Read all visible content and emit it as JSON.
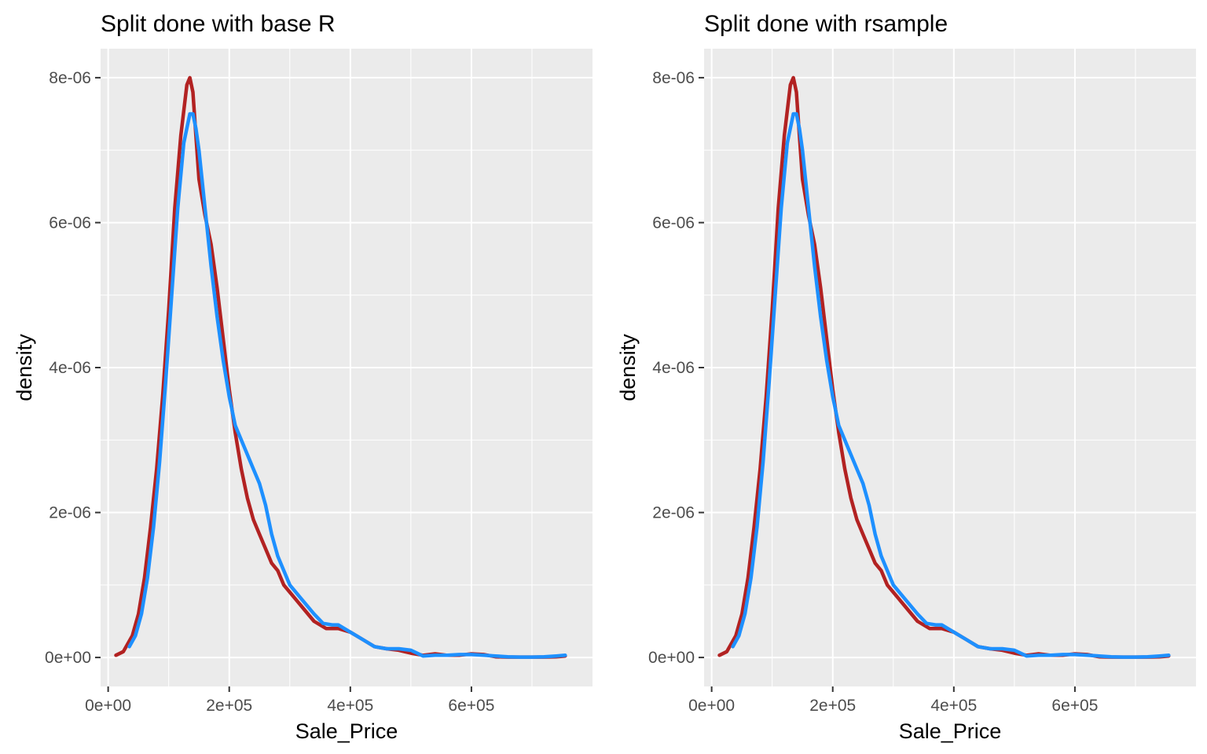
{
  "chart_data": [
    {
      "type": "line",
      "title": "Split done with base R",
      "xlabel": "Sale_Price",
      "ylabel": "density",
      "xlim": [
        -12500,
        800000
      ],
      "ylim": [
        -4e-07,
        8.4e-06
      ],
      "x_ticks": [
        0,
        200000,
        400000,
        600000
      ],
      "x_tick_labels": [
        "0e+00",
        "2e+05",
        "4e+05",
        "6e+05"
      ],
      "y_ticks": [
        0,
        2e-06,
        4e-06,
        6e-06,
        8e-06
      ],
      "y_tick_labels": [
        "0e+00",
        "2e-06",
        "4e-06",
        "6e-06",
        "8e-06"
      ],
      "grid": true,
      "legend": "none",
      "series": [
        {
          "color": "#B22222",
          "x": [
            12789,
            25000,
            40000,
            50000,
            60000,
            70000,
            80000,
            90000,
            100000,
            110000,
            120000,
            130000,
            135000,
            140000,
            145000,
            150000,
            160000,
            170000,
            180000,
            190000,
            200000,
            210000,
            220000,
            230000,
            240000,
            250000,
            260000,
            270000,
            280000,
            290000,
            300000,
            320000,
            340000,
            360000,
            380000,
            400000,
            420000,
            440000,
            460000,
            480000,
            500000,
            520000,
            540000,
            560000,
            580000,
            600000,
            620000,
            640000,
            660000,
            680000,
            700000,
            720000,
            740000,
            755000
          ],
          "y": [
            3e-08,
            8e-08,
            3e-07,
            6e-07,
            1.1e-06,
            1.8e-06,
            2.6e-06,
            3.6e-06,
            4.8e-06,
            6.2e-06,
            7.2e-06,
            7.9e-06,
            8e-06,
            7.8e-06,
            7.2e-06,
            6.6e-06,
            6.1e-06,
            5.7e-06,
            5.1e-06,
            4.4e-06,
            3.7e-06,
            3.1e-06,
            2.6e-06,
            2.2e-06,
            1.9e-06,
            1.7e-06,
            1.5e-06,
            1.3e-06,
            1.2e-06,
            1e-06,
            9e-07,
            7e-07,
            5e-07,
            4e-07,
            4e-07,
            3.5e-07,
            2.5e-07,
            1.5e-07,
            1.2e-07,
            1e-07,
            6e-08,
            3e-08,
            5e-08,
            3e-08,
            3e-08,
            5e-08,
            4e-08,
            1e-08,
            5e-09,
            5e-09,
            5e-09,
            5e-09,
            1e-08,
            2e-08
          ]
        },
        {
          "color": "#1E90FF",
          "x": [
            35000,
            45000,
            55000,
            65000,
            75000,
            85000,
            95000,
            105000,
            115000,
            125000,
            135000,
            140000,
            145000,
            150000,
            160000,
            170000,
            180000,
            190000,
            200000,
            210000,
            220000,
            230000,
            240000,
            250000,
            260000,
            270000,
            280000,
            290000,
            300000,
            320000,
            340000,
            355000,
            370000,
            380000,
            400000,
            420000,
            440000,
            460000,
            480000,
            500000,
            520000,
            540000,
            560000,
            580000,
            600000,
            620000,
            640000,
            660000,
            680000,
            700000,
            720000,
            740000,
            755000
          ],
          "y": [
            1.5e-07,
            3e-07,
            6e-07,
            1.1e-06,
            1.8e-06,
            2.7e-06,
            3.8e-06,
            5e-06,
            6.2e-06,
            7.1e-06,
            7.5e-06,
            7.5e-06,
            7.3e-06,
            7e-06,
            6.2e-06,
            5.4e-06,
            4.7e-06,
            4.1e-06,
            3.6e-06,
            3.2e-06,
            3e-06,
            2.8e-06,
            2.6e-06,
            2.4e-06,
            2.1e-06,
            1.7e-06,
            1.4e-06,
            1.2e-06,
            1e-06,
            8e-07,
            6e-07,
            4.7e-07,
            4.5e-07,
            4.5e-07,
            3.5e-07,
            2.5e-07,
            1.5e-07,
            1.2e-07,
            1.2e-07,
            1e-07,
            2e-08,
            3e-08,
            3e-08,
            4e-08,
            4e-08,
            3e-08,
            2e-08,
            1e-08,
            5e-09,
            5e-09,
            1e-08,
            2e-08,
            3e-08
          ]
        }
      ]
    },
    {
      "type": "line",
      "title": "Split done with rsample",
      "xlabel": "Sale_Price",
      "ylabel": "density",
      "xlim": [
        -12500,
        800000
      ],
      "ylim": [
        -4e-07,
        8.4e-06
      ],
      "x_ticks": [
        0,
        200000,
        400000,
        600000
      ],
      "x_tick_labels": [
        "0e+00",
        "2e+05",
        "4e+05",
        "6e+05"
      ],
      "y_ticks": [
        0,
        2e-06,
        4e-06,
        6e-06,
        8e-06
      ],
      "y_tick_labels": [
        "0e+00",
        "2e-06",
        "4e-06",
        "6e-06",
        "8e-06"
      ],
      "grid": true,
      "legend": "none",
      "series": [
        {
          "color": "#B22222",
          "x": [
            12789,
            25000,
            40000,
            50000,
            60000,
            70000,
            80000,
            90000,
            100000,
            110000,
            120000,
            130000,
            135000,
            140000,
            145000,
            150000,
            160000,
            170000,
            180000,
            190000,
            200000,
            210000,
            220000,
            230000,
            240000,
            250000,
            260000,
            270000,
            280000,
            290000,
            300000,
            320000,
            340000,
            360000,
            380000,
            400000,
            420000,
            440000,
            460000,
            480000,
            500000,
            520000,
            540000,
            560000,
            580000,
            600000,
            620000,
            640000,
            660000,
            680000,
            700000,
            720000,
            740000,
            755000
          ],
          "y": [
            3e-08,
            8e-08,
            3e-07,
            6e-07,
            1.1e-06,
            1.8e-06,
            2.6e-06,
            3.6e-06,
            4.8e-06,
            6.2e-06,
            7.2e-06,
            7.9e-06,
            8e-06,
            7.8e-06,
            7.2e-06,
            6.6e-06,
            6.1e-06,
            5.7e-06,
            5.1e-06,
            4.4e-06,
            3.7e-06,
            3.1e-06,
            2.6e-06,
            2.2e-06,
            1.9e-06,
            1.7e-06,
            1.5e-06,
            1.3e-06,
            1.2e-06,
            1e-06,
            9e-07,
            7e-07,
            5e-07,
            4e-07,
            4e-07,
            3.5e-07,
            2.5e-07,
            1.5e-07,
            1.2e-07,
            1e-07,
            6e-08,
            3e-08,
            5e-08,
            3e-08,
            3e-08,
            5e-08,
            4e-08,
            1e-08,
            5e-09,
            5e-09,
            5e-09,
            5e-09,
            1e-08,
            2e-08
          ]
        },
        {
          "color": "#1E90FF",
          "x": [
            35000,
            45000,
            55000,
            65000,
            75000,
            85000,
            95000,
            105000,
            115000,
            125000,
            135000,
            140000,
            145000,
            150000,
            160000,
            170000,
            180000,
            190000,
            200000,
            210000,
            220000,
            230000,
            240000,
            250000,
            260000,
            270000,
            280000,
            290000,
            300000,
            320000,
            340000,
            355000,
            370000,
            380000,
            400000,
            420000,
            440000,
            460000,
            480000,
            500000,
            520000,
            540000,
            560000,
            580000,
            600000,
            620000,
            640000,
            660000,
            680000,
            700000,
            720000,
            740000,
            755000
          ],
          "y": [
            1.5e-07,
            3e-07,
            6e-07,
            1.1e-06,
            1.8e-06,
            2.7e-06,
            3.8e-06,
            5e-06,
            6.2e-06,
            7.1e-06,
            7.5e-06,
            7.5e-06,
            7.3e-06,
            7e-06,
            6.2e-06,
            5.4e-06,
            4.7e-06,
            4.1e-06,
            3.6e-06,
            3.2e-06,
            3e-06,
            2.8e-06,
            2.6e-06,
            2.4e-06,
            2.1e-06,
            1.7e-06,
            1.4e-06,
            1.2e-06,
            1e-06,
            8e-07,
            6e-07,
            4.7e-07,
            4.5e-07,
            4.5e-07,
            3.5e-07,
            2.5e-07,
            1.5e-07,
            1.2e-07,
            1.2e-07,
            1e-07,
            2e-08,
            3e-08,
            3e-08,
            4e-08,
            4e-08,
            3e-08,
            2e-08,
            1e-08,
            5e-09,
            5e-09,
            1e-08,
            2e-08,
            3e-08
          ]
        }
      ]
    }
  ]
}
